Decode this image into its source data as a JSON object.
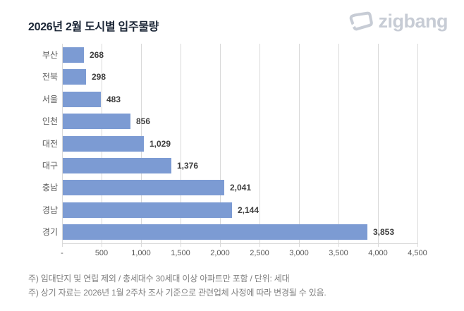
{
  "header": {
    "title": "2026년 2월 도시별 입주물량",
    "logo_text": "zigbang",
    "logo_icon": "zigbang-house-icon"
  },
  "chart_data": {
    "type": "bar",
    "orientation": "horizontal",
    "title": "2026년 2월 도시별 입주물량",
    "categories": [
      "부산",
      "전북",
      "서울",
      "인천",
      "대전",
      "대구",
      "충남",
      "경남",
      "경기"
    ],
    "values": [
      268,
      298,
      483,
      856,
      1029,
      1376,
      2041,
      2144,
      3853
    ],
    "value_labels": [
      "268",
      "298",
      "483",
      "856",
      "1,029",
      "1,376",
      "2,041",
      "2,144",
      "3,853"
    ],
    "xlabel": "",
    "ylabel": "",
    "xlim": [
      0,
      4500
    ],
    "x_ticks": [
      0,
      500,
      1000,
      1500,
      2000,
      2500,
      3000,
      3500,
      4000,
      4500
    ],
    "x_tick_labels": [
      "-",
      "500",
      "1,000",
      "1,500",
      "2,000",
      "2,500",
      "3,000",
      "3,500",
      "4,000",
      "4,500"
    ],
    "grid": true,
    "legend": "none",
    "unit": "세대"
  },
  "footnotes": [
    "주) 임대단지 및 연립 제외 / 총세대수 30세대 이상 아파트만 포함 / 단위: 세대",
    "주) 상기 자료는 2026년 1월 2주차 조사 기준으로 관련업체 사정에 따라 변경될 수 있음."
  ],
  "colors": {
    "bar": "#7C9BD3",
    "title_text": "#1b2636",
    "value_text": "#3f3f3f",
    "axis_text": "#595959",
    "gridline": "#d9d9d9",
    "footnote_text": "#808080",
    "logo": "#c7ccd5",
    "background": "#ffffff"
  }
}
